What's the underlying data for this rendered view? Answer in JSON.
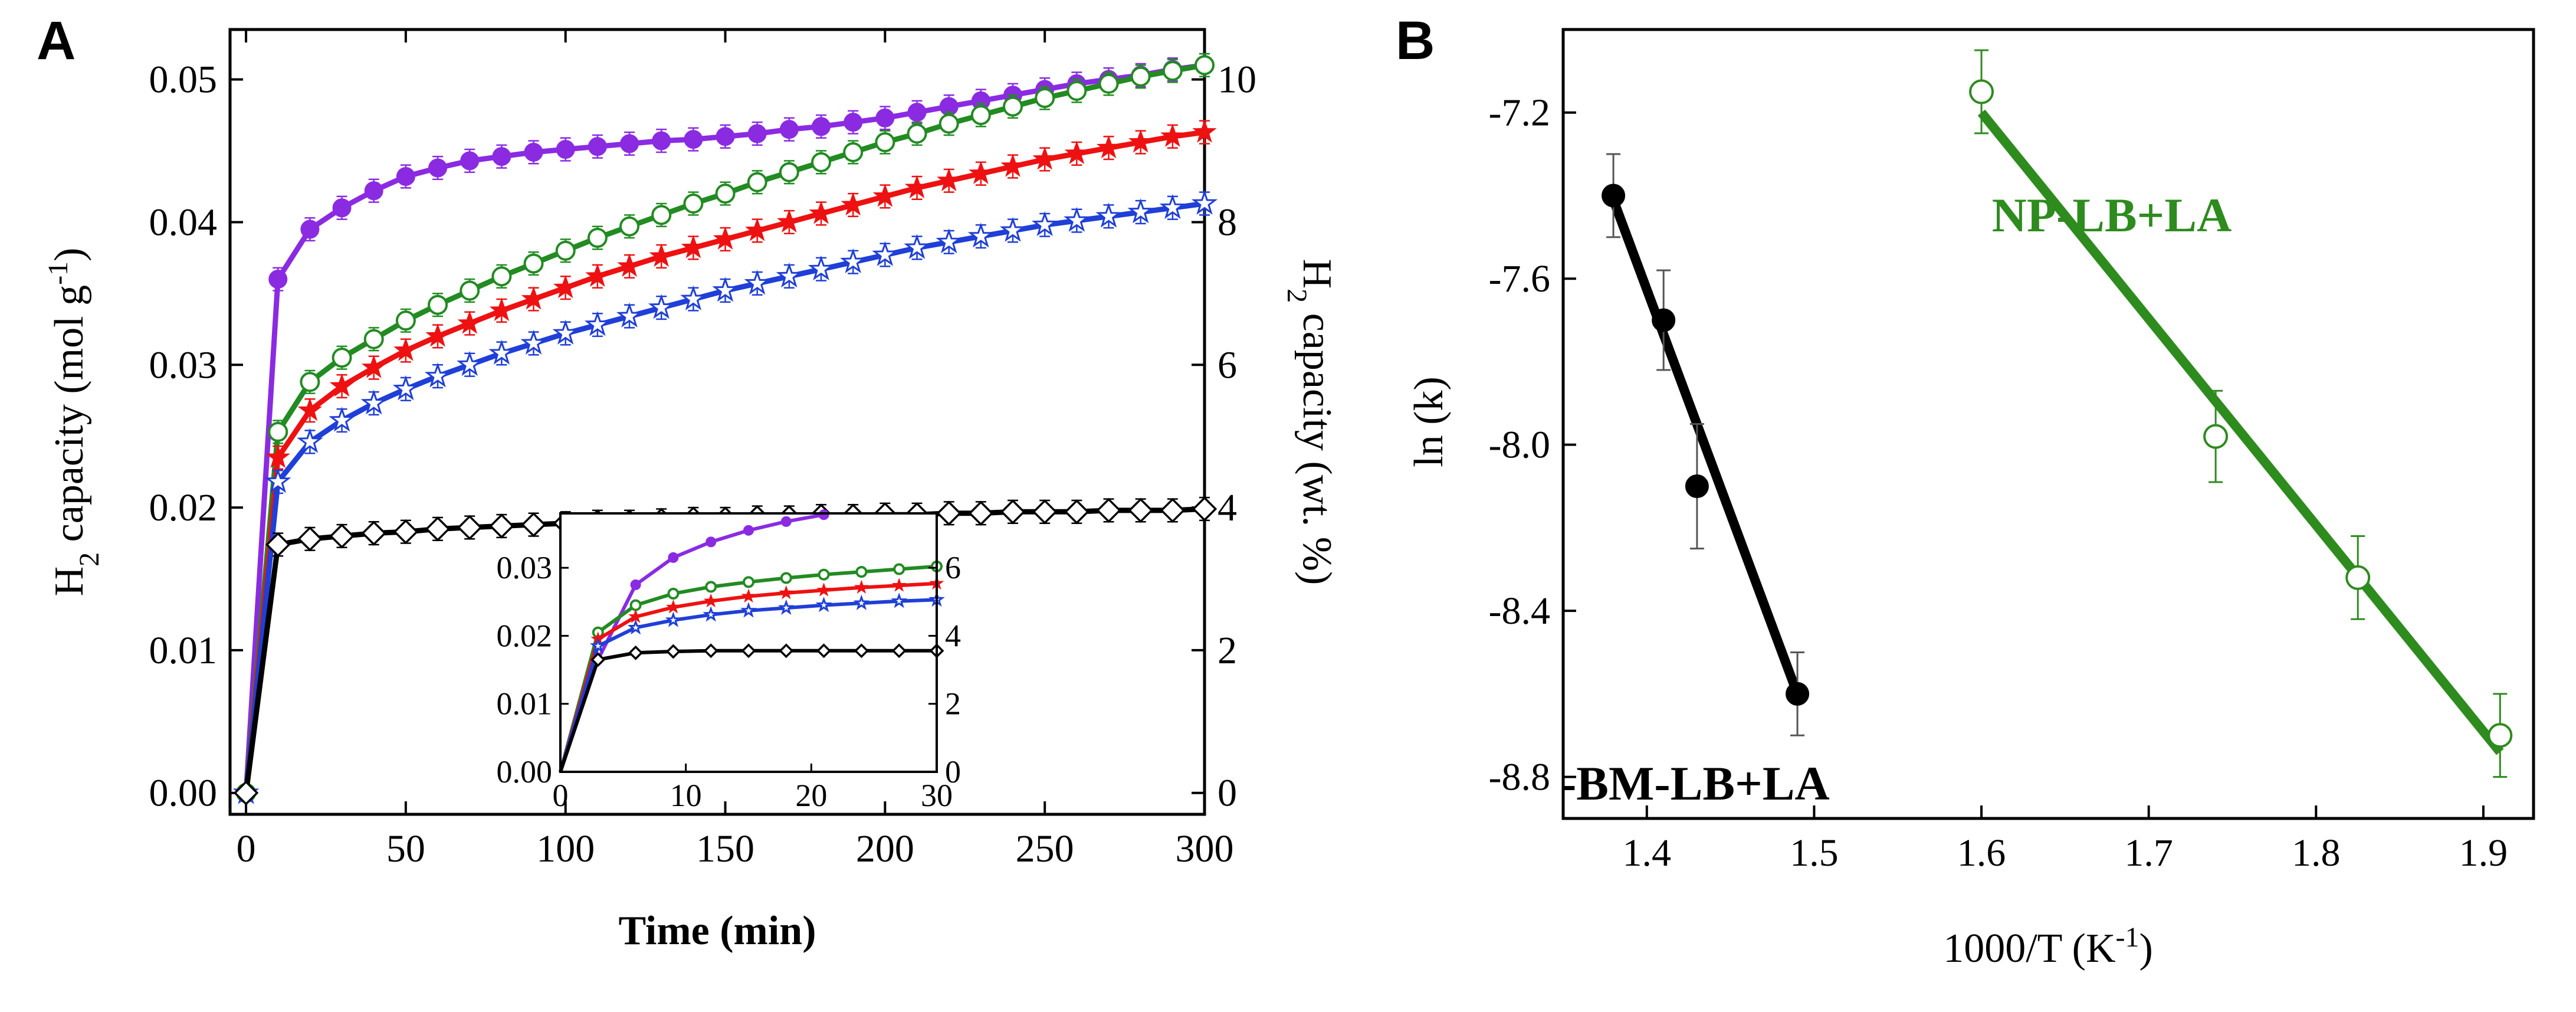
{
  "panels": {
    "a": {
      "label": "A"
    },
    "b": {
      "label": "B"
    }
  },
  "chart_data": [
    {
      "id": "panel-a-main",
      "type": "scatter",
      "title": "",
      "xlabel": "Time (min)",
      "ylabel": "H2 capacity (mol g-1)",
      "ylabel_parts": {
        "pre": "H",
        "sub": "2",
        "mid": " capacity (mol g",
        "sup": "-1",
        "post": ")"
      },
      "ylabel_right": "H2 capacity (wt. %)",
      "ylabel_right_parts": {
        "pre": "H",
        "sub": "2",
        "post": " capacity (wt. %)"
      },
      "xlim": [
        -5,
        300
      ],
      "ylim": [
        -0.0015,
        0.0535
      ],
      "x_ticks": [
        0,
        50,
        100,
        150,
        200,
        250,
        300
      ],
      "x_tick_labels": [
        "0",
        "50",
        "100",
        "150",
        "200",
        "250",
        "300"
      ],
      "y_ticks": [
        0,
        0.01,
        0.02,
        0.03,
        0.04,
        0.05
      ],
      "y_tick_labels": [
        "0.00",
        "0.01",
        "0.02",
        "0.03",
        "0.04",
        "0.05"
      ],
      "y2_ticks": [
        0,
        2,
        4,
        6,
        8,
        10
      ],
      "y2_tick_labels": [
        "0",
        "2",
        "4",
        "6",
        "8",
        "10"
      ],
      "y2_scale_note": "1 wt.% per 0.005 mol/g",
      "series": [
        {
          "name": "purple (filled circles)",
          "color": "#8a2be2",
          "marker": "circle-filled",
          "x": [
            0,
            10,
            20,
            30,
            40,
            50,
            60,
            70,
            80,
            90,
            100,
            110,
            120,
            130,
            140,
            150,
            160,
            170,
            180,
            190,
            200,
            210,
            220,
            230,
            240,
            250,
            260,
            270,
            280,
            290,
            300
          ],
          "values": [
            0.0,
            0.036,
            0.0395,
            0.041,
            0.0422,
            0.0432,
            0.0438,
            0.0443,
            0.0446,
            0.0449,
            0.0451,
            0.0453,
            0.0455,
            0.0457,
            0.0458,
            0.046,
            0.0462,
            0.0465,
            0.0467,
            0.047,
            0.0473,
            0.0477,
            0.0481,
            0.0485,
            0.0489,
            0.0493,
            0.0497,
            0.05,
            0.0503,
            0.0507,
            0.051
          ],
          "error": 0.0008
        },
        {
          "name": "green (open circles)",
          "color": "#228b22",
          "marker": "circle-open",
          "x": [
            0,
            10,
            20,
            30,
            40,
            50,
            60,
            70,
            80,
            90,
            100,
            110,
            120,
            130,
            140,
            150,
            160,
            170,
            180,
            190,
            200,
            210,
            220,
            230,
            240,
            250,
            260,
            270,
            280,
            290,
            300
          ],
          "values": [
            0.0,
            0.0253,
            0.0288,
            0.0305,
            0.0318,
            0.0331,
            0.0342,
            0.0352,
            0.0362,
            0.0371,
            0.038,
            0.0389,
            0.0397,
            0.0405,
            0.0413,
            0.042,
            0.0428,
            0.0435,
            0.0442,
            0.0449,
            0.0456,
            0.0462,
            0.0469,
            0.0475,
            0.0481,
            0.0487,
            0.0492,
            0.0497,
            0.0502,
            0.0506,
            0.051
          ],
          "error": 0.0008
        },
        {
          "name": "red (stars)",
          "color": "#ee1111",
          "marker": "star",
          "x": [
            0,
            10,
            20,
            30,
            40,
            50,
            60,
            70,
            80,
            90,
            100,
            110,
            120,
            130,
            140,
            150,
            160,
            170,
            180,
            190,
            200,
            210,
            220,
            230,
            240,
            250,
            260,
            270,
            280,
            290,
            300
          ],
          "values": [
            0.0,
            0.0235,
            0.0268,
            0.0285,
            0.0298,
            0.031,
            0.032,
            0.0329,
            0.0338,
            0.0346,
            0.0354,
            0.0362,
            0.0369,
            0.0376,
            0.0382,
            0.0388,
            0.0394,
            0.04,
            0.0406,
            0.0412,
            0.0418,
            0.0424,
            0.0429,
            0.0434,
            0.0439,
            0.0444,
            0.0448,
            0.0452,
            0.0456,
            0.046,
            0.0463
          ],
          "error": 0.0008
        },
        {
          "name": "blue (open stars)",
          "color": "#1f3fd8",
          "marker": "star-open",
          "x": [
            0,
            10,
            20,
            30,
            40,
            50,
            60,
            70,
            80,
            90,
            100,
            110,
            120,
            130,
            140,
            150,
            160,
            170,
            180,
            190,
            200,
            210,
            220,
            230,
            240,
            250,
            260,
            270,
            280,
            290,
            300
          ],
          "values": [
            0.0,
            0.0218,
            0.0246,
            0.0261,
            0.0273,
            0.0283,
            0.0292,
            0.03,
            0.0308,
            0.0315,
            0.0322,
            0.0328,
            0.0334,
            0.034,
            0.0346,
            0.0352,
            0.0357,
            0.0362,
            0.0367,
            0.0372,
            0.0377,
            0.0382,
            0.0386,
            0.039,
            0.0394,
            0.0398,
            0.0401,
            0.0404,
            0.0407,
            0.041,
            0.0413
          ],
          "error": 0.0008
        },
        {
          "name": "black (open diamonds)",
          "color": "#000000",
          "marker": "diamond-open",
          "x": [
            0,
            10,
            20,
            30,
            40,
            50,
            60,
            70,
            80,
            90,
            100,
            110,
            120,
            130,
            140,
            150,
            160,
            170,
            180,
            190,
            200,
            210,
            220,
            230,
            240,
            250,
            260,
            270,
            280,
            290,
            300
          ],
          "values": [
            0.0,
            0.0174,
            0.0178,
            0.018,
            0.0182,
            0.0183,
            0.0185,
            0.0186,
            0.0187,
            0.0188,
            0.0189,
            0.019,
            0.019,
            0.0191,
            0.0192,
            0.0192,
            0.0193,
            0.0193,
            0.0194,
            0.0194,
            0.0195,
            0.0195,
            0.0196,
            0.0196,
            0.0197,
            0.0197,
            0.0197,
            0.0198,
            0.0198,
            0.0198,
            0.0199
          ],
          "error": 0.0008
        }
      ]
    },
    {
      "id": "panel-a-inset",
      "type": "line",
      "xlim": [
        0,
        30
      ],
      "ylim": [
        0,
        0.038
      ],
      "x_ticks": [
        0,
        10,
        20,
        30
      ],
      "x_tick_labels": [
        "0",
        "10",
        "20",
        "30"
      ],
      "y_ticks": [
        0,
        0.01,
        0.02,
        0.03
      ],
      "y_tick_labels": [
        "0.00",
        "0.01",
        "0.02",
        "0.03"
      ],
      "y2_ticks": [
        0,
        2,
        4,
        6
      ],
      "y2_tick_labels": [
        "0",
        "2",
        "4",
        "6"
      ],
      "series": [
        {
          "name": "purple",
          "color": "#8a2be2",
          "marker": "circle-filled",
          "x": [
            0,
            3,
            6,
            9,
            12,
            15,
            18,
            21
          ],
          "values": [
            0,
            0.0165,
            0.0275,
            0.0315,
            0.0338,
            0.0355,
            0.0368,
            0.0378
          ]
        },
        {
          "name": "green",
          "color": "#228b22",
          "marker": "circle-open",
          "x": [
            0,
            3,
            6,
            9,
            12,
            15,
            18,
            21,
            24,
            27,
            30
          ],
          "values": [
            0,
            0.0205,
            0.0245,
            0.0262,
            0.0272,
            0.0279,
            0.0285,
            0.029,
            0.0294,
            0.0298,
            0.0302
          ]
        },
        {
          "name": "red",
          "color": "#ee1111",
          "marker": "star",
          "x": [
            0,
            3,
            6,
            9,
            12,
            15,
            18,
            21,
            24,
            27,
            30
          ],
          "values": [
            0,
            0.0195,
            0.0228,
            0.0242,
            0.0251,
            0.0258,
            0.0263,
            0.0267,
            0.0271,
            0.0274,
            0.0277
          ]
        },
        {
          "name": "blue",
          "color": "#1f3fd8",
          "marker": "star-open",
          "x": [
            0,
            3,
            6,
            9,
            12,
            15,
            18,
            21,
            24,
            27,
            30
          ],
          "values": [
            0,
            0.0185,
            0.0212,
            0.0223,
            0.0231,
            0.0237,
            0.0241,
            0.0245,
            0.0248,
            0.0251,
            0.0253
          ]
        },
        {
          "name": "black",
          "color": "#000000",
          "marker": "diamond-open",
          "x": [
            0,
            3,
            6,
            9,
            12,
            15,
            18,
            21,
            24,
            27,
            30
          ],
          "values": [
            0,
            0.0165,
            0.0175,
            0.0177,
            0.0178,
            0.0178,
            0.0178,
            0.0178,
            0.0178,
            0.0178,
            0.0178
          ]
        }
      ]
    },
    {
      "id": "panel-b",
      "type": "scatter",
      "title": "",
      "xlabel": "1000/T (K-1)",
      "xlabel_parts": {
        "pre": "1000/T (K",
        "sup": "-1",
        "post": ")"
      },
      "ylabel": "ln (k)",
      "xlim": [
        1.35,
        1.93
      ],
      "ylim": [
        -8.9,
        -7.0
      ],
      "x_ticks": [
        1.4,
        1.5,
        1.6,
        1.7,
        1.8,
        1.9
      ],
      "x_tick_labels": [
        "1.4",
        "1.5",
        "1.6",
        "1.7",
        "1.8",
        "1.9"
      ],
      "y_ticks": [
        -7.2,
        -7.6,
        -8.0,
        -8.4,
        -8.8
      ],
      "y_tick_labels": [
        "-7.2",
        "-7.6",
        "-8.0",
        "-8.4",
        "-8.8"
      ],
      "series": [
        {
          "name": "BM-LB+LA",
          "label": "-BM-LB+LA",
          "color": "#000000",
          "marker": "circle-filled",
          "x": [
            1.38,
            1.41,
            1.43,
            1.49
          ],
          "values": [
            -7.4,
            -7.7,
            -8.1,
            -8.6
          ],
          "errors": [
            0.1,
            0.12,
            0.15,
            0.1
          ],
          "fit": {
            "x": [
              1.38,
              1.49
            ],
            "y": [
              -7.41,
              -8.6
            ]
          }
        },
        {
          "name": "NP-LB+LA",
          "label": "NP-LB+LA",
          "color": "#2e8b1e",
          "marker": "circle-open",
          "x": [
            1.6,
            1.74,
            1.825,
            1.91
          ],
          "values": [
            -7.15,
            -7.98,
            -8.32,
            -8.7
          ],
          "errors": [
            0.1,
            0.11,
            0.1,
            0.1
          ],
          "fit": {
            "x": [
              1.6,
              1.91
            ],
            "y": [
              -7.2,
              -8.74
            ]
          }
        }
      ]
    }
  ]
}
